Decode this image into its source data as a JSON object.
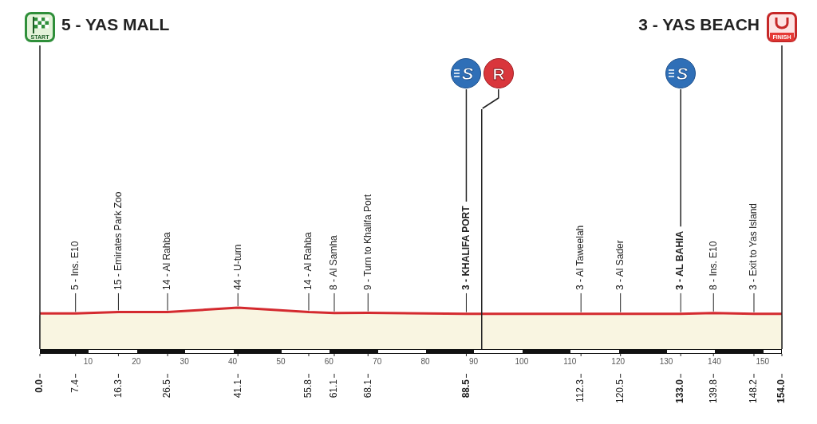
{
  "chart_data": {
    "type": "line",
    "x": [
      0,
      7.4,
      16.3,
      26.5,
      41.1,
      55.8,
      61.1,
      68.1,
      88.5,
      112.3,
      120.5,
      133,
      139.8,
      148.2,
      154
    ],
    "values": [
      5,
      5,
      15,
      14,
      44,
      14,
      8,
      9,
      3,
      3,
      3,
      3,
      8,
      3,
      3
    ],
    "value_labels": [
      null,
      "5 - Ins. E10",
      "15 - Emirates Park Zoo",
      "14 - Al Rahba",
      "44 - U-turn",
      "14 - Al Rahba",
      "8 - Al Samha",
      "9 - Turn to Khalifa Port",
      "3 - KHALIFA PORT",
      "3 - Al Taweelah",
      "3 - Al Sader",
      "3 - AL BAHIA",
      "8 - Ins. E10",
      "3 - Exit to Yas Island",
      null
    ],
    "color": "#d42a2f",
    "xlim": [
      0,
      154
    ],
    "xticks": [
      {
        "value": 0,
        "label": "0.0"
      },
      7.4,
      16.3,
      26.5,
      41.1,
      55.8,
      61.1,
      68.1,
      88.5,
      112.3,
      120.5,
      {
        "value": 133,
        "label": "133.0"
      },
      139.8,
      148.2,
      {
        "value": 154,
        "label": "154.0"
      }
    ],
    "x2lim": [
      0,
      154
    ],
    "x2ticks": [
      10,
      20,
      30,
      40,
      50,
      60,
      70,
      80,
      90,
      100,
      110,
      120,
      130,
      140,
      150
    ],
    "grid": "x",
    "ref_lines": [
      {
        "axis": "x",
        "value": 0,
        "label": "START"
      },
      {
        "axis": "x",
        "value": 88.5,
        "label": "S"
      },
      {
        "axis": "x",
        "value": 91.7,
        "label": "R"
      },
      {
        "axis": "x",
        "value": 133,
        "label": "S"
      },
      {
        "axis": "x",
        "value": 154,
        "label": "FINISH"
      }
    ],
    "annotations": [
      "5 - YAS MALL",
      "3 - YAS BEACH"
    ]
  }
}
